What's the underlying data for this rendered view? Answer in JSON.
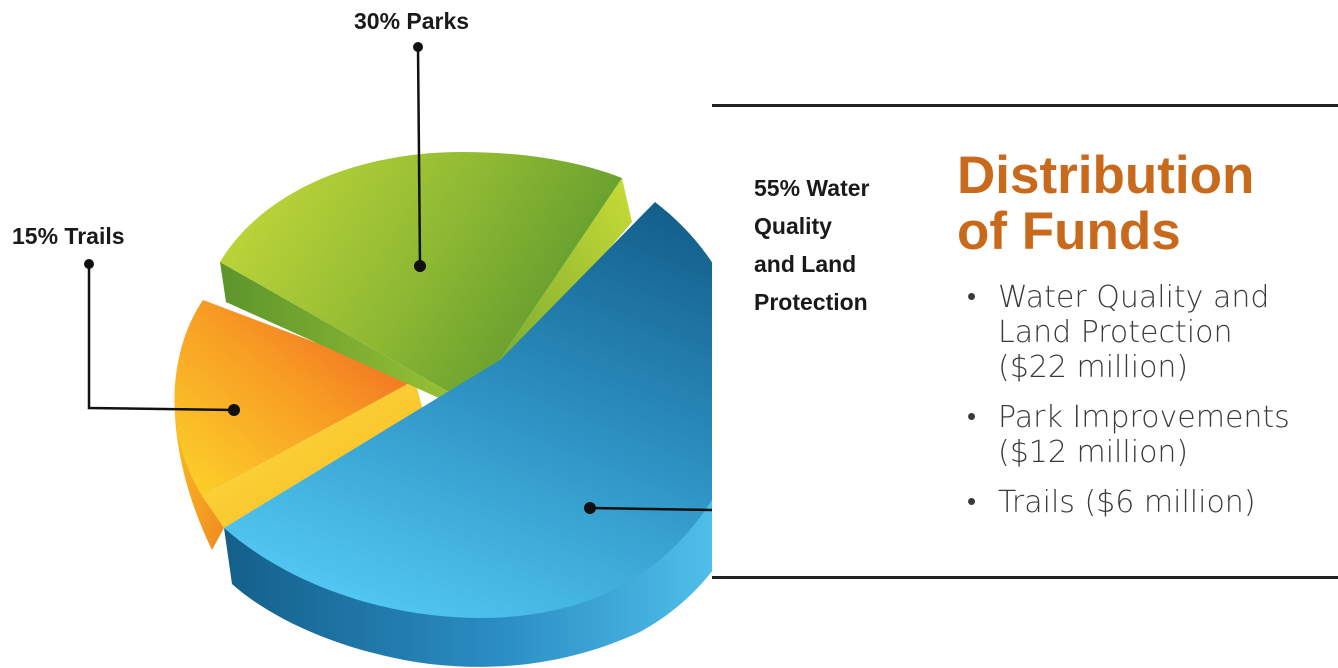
{
  "chart_data": {
    "type": "pie",
    "title": "",
    "slices": [
      {
        "label": "Trails",
        "value": 15,
        "color_top": "#f26a23",
        "color_top_light": "#fbbf2a",
        "color_side": "#f5b21c"
      },
      {
        "label": "Parks",
        "value": 30,
        "color_top": "#a6c838",
        "color_top_light": "#c4d93a",
        "color_side": "#5e9a2c"
      },
      {
        "label": "Water Quality and Land Protection",
        "value": 55,
        "color_top": "#1f77a8",
        "color_top_light": "#4fc4ef",
        "color_side": "#136592"
      }
    ],
    "slice_labels": [
      {
        "lines": [
          "15% Trails"
        ]
      },
      {
        "lines": [
          "30% Parks"
        ]
      },
      {
        "lines": [
          "55% Water",
          "Quality",
          "and Land",
          "Protection"
        ]
      }
    ]
  },
  "panel": {
    "title_lines": [
      "Distribution",
      "of Funds"
    ],
    "title_color": "#c8691c",
    "bullets": [
      {
        "lines": [
          "Water Quality and",
          "Land Protection",
          "($22 million)"
        ]
      },
      {
        "lines": [
          "Park Improvements",
          "($12 million)"
        ]
      },
      {
        "lines": [
          "Trails ($6 million)"
        ]
      }
    ]
  }
}
